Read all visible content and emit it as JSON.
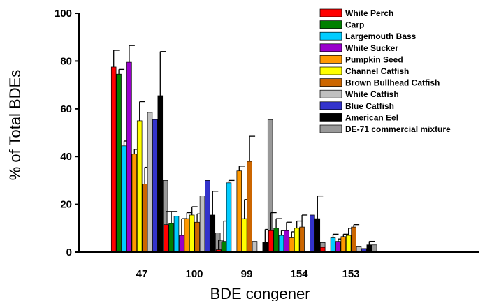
{
  "chart_data": {
    "type": "bar",
    "xlabel": "BDE congener",
    "ylabel": "% of Total BDEs",
    "ylim": [
      0,
      100
    ],
    "yticks": [
      0,
      20,
      40,
      60,
      80,
      100
    ],
    "categories": [
      "47",
      "100",
      "99",
      "154",
      "153"
    ],
    "legend_position": "top-right",
    "series": [
      {
        "name": "White Perch",
        "color": "#ff0000",
        "values": [
          77.5,
          11.5,
          1.0,
          9.0,
          2.0
        ],
        "error": [
          7.0,
          5.5,
          4.0,
          7.5,
          0
        ]
      },
      {
        "name": "Carp",
        "color": "#008000",
        "values": [
          74.5,
          12.0,
          4.5,
          10.0,
          0
        ],
        "error": [
          2.0,
          5.0,
          8.5,
          4.0,
          0
        ]
      },
      {
        "name": "Largemouth Bass",
        "color": "#00ccff",
        "values": [
          44.5,
          15.0,
          29.0,
          7.0,
          6.0
        ],
        "error": [
          2.0,
          0,
          1.0,
          2.0,
          1.5
        ]
      },
      {
        "name": "White Sucker",
        "color": "#9900cc",
        "values": [
          79.5,
          7.0,
          0,
          9.0,
          4.5
        ],
        "error": [
          7.0,
          7.0,
          0,
          3.5,
          1.0
        ]
      },
      {
        "name": "Pumpkin Seed",
        "color": "#ff9900",
        "values": [
          41.0,
          14.0,
          34.0,
          6.0,
          6.5
        ],
        "error": [
          2.0,
          2.5,
          2.0,
          2.5,
          1.0
        ]
      },
      {
        "name": "Channel Catfish",
        "color": "#ffff00",
        "values": [
          55.0,
          15.5,
          14.0,
          10.0,
          7.0
        ],
        "error": [
          8.0,
          3.5,
          8.0,
          3.0,
          3.0
        ]
      },
      {
        "name": "Brown Bullhead Catfish",
        "color": "#cc6600",
        "values": [
          28.5,
          12.5,
          38.0,
          10.5,
          10.5
        ],
        "error": [
          7.0,
          3.5,
          10.5,
          5.0,
          1.0
        ]
      },
      {
        "name": "White Catfish",
        "color": "#c0c0c0",
        "values": [
          58.5,
          23.5,
          4.5,
          0,
          2.5
        ],
        "error": [
          0,
          0,
          0,
          0,
          0
        ]
      },
      {
        "name": "Blue Catfish",
        "color": "#3333cc",
        "values": [
          55.5,
          30.0,
          0,
          15.5,
          1.5
        ],
        "error": [
          0,
          0,
          0,
          0,
          0
        ]
      },
      {
        "name": "American Eel",
        "color": "#000000",
        "values": [
          65.5,
          15.5,
          4.0,
          14.0,
          3.0
        ],
        "error": [
          18.5,
          10.0,
          5.5,
          9.5,
          1.5
        ]
      },
      {
        "name": "DE-71 commercial mixture",
        "color": "#999999",
        "values": [
          30.0,
          8.0,
          55.5,
          4.0,
          3.0
        ],
        "error": [
          0,
          0,
          0,
          0,
          0
        ]
      }
    ]
  }
}
